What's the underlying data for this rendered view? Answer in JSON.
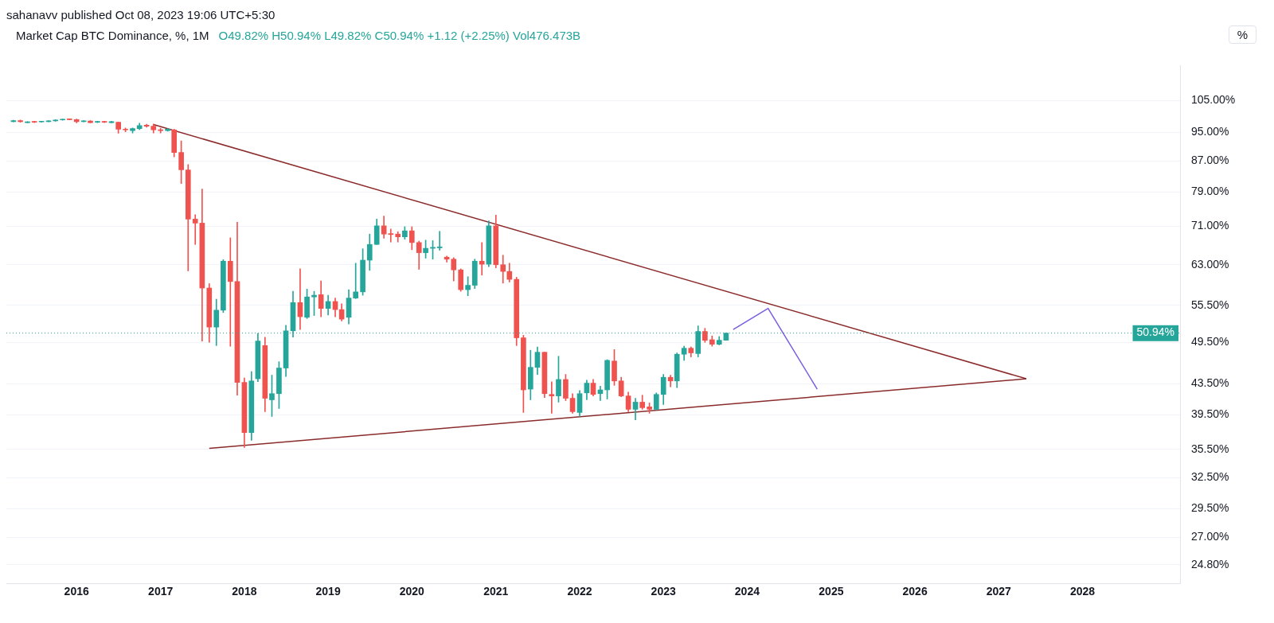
{
  "chart_data": {
    "type": "candlestick",
    "title": "Market Cap BTC Dominance, %, 1M",
    "subtitle": "O49.82% H50.94% L49.82% C50.94% +1.12 (+2.25%) Vol476.473B",
    "annotations": [
      "sahanavv published Oct 08, 2023 19:06 UTC+5:30"
    ],
    "ylabel": "%",
    "x": [
      "2015-04",
      "2015-05",
      "2015-06",
      "2015-07",
      "2015-08",
      "2015-09",
      "2015-10",
      "2015-11",
      "2015-12",
      "2016-01",
      "2016-02",
      "2016-03",
      "2016-04",
      "2016-05",
      "2016-06",
      "2016-07",
      "2016-08",
      "2016-09",
      "2016-10",
      "2016-11",
      "2016-12",
      "2017-01",
      "2017-02",
      "2017-03",
      "2017-04",
      "2017-05",
      "2017-06",
      "2017-07",
      "2017-08",
      "2017-09",
      "2017-10",
      "2017-11",
      "2017-12",
      "2018-01",
      "2018-02",
      "2018-03",
      "2018-04",
      "2018-05",
      "2018-06",
      "2018-07",
      "2018-08",
      "2018-09",
      "2018-10",
      "2018-11",
      "2018-12",
      "2019-01",
      "2019-02",
      "2019-03",
      "2019-04",
      "2019-05",
      "2019-06",
      "2019-07",
      "2019-08",
      "2019-09",
      "2019-10",
      "2019-11",
      "2019-12",
      "2020-01",
      "2020-02",
      "2020-03",
      "2020-04",
      "2020-05",
      "2020-06",
      "2020-07",
      "2020-08",
      "2020-09",
      "2020-10",
      "2020-11",
      "2020-12",
      "2021-01",
      "2021-02",
      "2021-03",
      "2021-04",
      "2021-05",
      "2021-06",
      "2021-07",
      "2021-08",
      "2021-09",
      "2021-10",
      "2021-11",
      "2021-12",
      "2022-01",
      "2022-02",
      "2022-03",
      "2022-04",
      "2022-05",
      "2022-06",
      "2022-07",
      "2022-08",
      "2022-09",
      "2022-10",
      "2022-11",
      "2022-12",
      "2023-01",
      "2023-02",
      "2023-03",
      "2023-04",
      "2023-05",
      "2023-06",
      "2023-07",
      "2023-08",
      "2023-09",
      "2023-10"
    ],
    "ohlc": [
      [
        98.3,
        98.7,
        98.2,
        98.6
      ],
      [
        98.6,
        98.8,
        98.1,
        98.3
      ],
      [
        98.0,
        98.3,
        97.9,
        98.1
      ],
      [
        98.3,
        98.4,
        98.0,
        98.1
      ],
      [
        98.2,
        98.4,
        98.1,
        98.3
      ],
      [
        98.3,
        98.6,
        98.2,
        98.5
      ],
      [
        98.5,
        98.9,
        98.4,
        98.8
      ],
      [
        98.8,
        99.1,
        98.7,
        99.0
      ],
      [
        99.0,
        99.1,
        98.8,
        98.9
      ],
      [
        98.9,
        99.1,
        97.9,
        98.3
      ],
      [
        98.3,
        98.6,
        98.2,
        98.5
      ],
      [
        98.5,
        98.6,
        97.9,
        98.0
      ],
      [
        98.1,
        98.4,
        98.0,
        98.3
      ],
      [
        98.3,
        98.4,
        98.0,
        98.1
      ],
      [
        98.0,
        98.4,
        97.9,
        98.3
      ],
      [
        98.1,
        98.2,
        94.8,
        96.0
      ],
      [
        96.0,
        96.4,
        95.2,
        95.8
      ],
      [
        95.6,
        96.4,
        94.9,
        96.2
      ],
      [
        96.2,
        97.8,
        95.9,
        97.1
      ],
      [
        97.2,
        97.5,
        96.6,
        96.9
      ],
      [
        96.9,
        97.6,
        94.9,
        95.8
      ],
      [
        95.8,
        96.3,
        94.9,
        95.6
      ],
      [
        95.6,
        96.2,
        95.4,
        96.0
      ],
      [
        95.8,
        96.0,
        88.1,
        89.3
      ],
      [
        89.3,
        92.6,
        81.1,
        84.6
      ],
      [
        84.6,
        86.0,
        61.8,
        72.6
      ],
      [
        72.6,
        73.6,
        67.1,
        71.7
      ],
      [
        71.7,
        79.7,
        49.7,
        58.6
      ],
      [
        58.6,
        59.4,
        49.5,
        51.9
      ],
      [
        51.9,
        56.6,
        49.0,
        54.7
      ],
      [
        54.7,
        64.0,
        54.3,
        63.7
      ],
      [
        63.7,
        68.5,
        48.9,
        59.8
      ],
      [
        59.8,
        71.9,
        42.0,
        43.7
      ],
      [
        43.7,
        44.3,
        35.7,
        37.4
      ],
      [
        37.4,
        45.2,
        36.5,
        43.9
      ],
      [
        44.2,
        50.9,
        43.8,
        49.7
      ],
      [
        49.0,
        50.3,
        39.9,
        41.6
      ],
      [
        41.4,
        44.7,
        39.3,
        42.2
      ],
      [
        42.2,
        46.6,
        40.3,
        45.7
      ],
      [
        45.7,
        52.2,
        44.5,
        51.3
      ],
      [
        51.3,
        58.0,
        50.3,
        56.0
      ],
      [
        56.0,
        62.2,
        51.5,
        53.6
      ],
      [
        53.5,
        58.4,
        53.3,
        57.0
      ],
      [
        57.0,
        58.0,
        53.8,
        57.3
      ],
      [
        57.4,
        59.9,
        53.6,
        55.0
      ],
      [
        55.0,
        57.3,
        53.9,
        56.2
      ],
      [
        56.2,
        56.8,
        53.6,
        54.8
      ],
      [
        54.8,
        55.8,
        52.9,
        53.2
      ],
      [
        53.5,
        58.3,
        52.4,
        56.8
      ],
      [
        56.8,
        63.3,
        56.7,
        57.9
      ],
      [
        57.9,
        66.2,
        57.3,
        63.9
      ],
      [
        63.9,
        69.3,
        61.9,
        67.1
      ],
      [
        67.1,
        72.6,
        67.1,
        71.1
      ],
      [
        71.1,
        73.3,
        68.4,
        69.3
      ],
      [
        69.4,
        70.4,
        67.6,
        69.2
      ],
      [
        69.3,
        69.8,
        67.6,
        68.7
      ],
      [
        68.7,
        70.9,
        68.2,
        70.0
      ],
      [
        70.0,
        70.9,
        66.0,
        67.5
      ],
      [
        67.5,
        67.8,
        62.1,
        65.4
      ],
      [
        65.4,
        68.0,
        64.3,
        66.3
      ],
      [
        66.3,
        67.9,
        64.1,
        66.5
      ],
      [
        66.4,
        69.9,
        65.9,
        66.6
      ],
      [
        64.5,
        64.7,
        63.5,
        64.1
      ],
      [
        64.1,
        64.4,
        59.9,
        62.0
      ],
      [
        62.0,
        62.2,
        58.0,
        58.3
      ],
      [
        58.3,
        60.7,
        57.2,
        59.1
      ],
      [
        59.1,
        64.1,
        58.5,
        63.7
      ],
      [
        63.7,
        67.5,
        61.0,
        63.1
      ],
      [
        63.1,
        72.2,
        62.6,
        71.1
      ],
      [
        71.1,
        73.5,
        62.4,
        63.0
      ],
      [
        63.0,
        64.9,
        59.5,
        61.7
      ],
      [
        61.7,
        63.3,
        59.7,
        60.2
      ],
      [
        60.2,
        60.6,
        49.0,
        50.2
      ],
      [
        50.2,
        50.6,
        39.8,
        42.7
      ],
      [
        42.8,
        48.3,
        41.4,
        45.8
      ],
      [
        45.8,
        48.8,
        44.8,
        48.0
      ],
      [
        48.0,
        48.0,
        41.7,
        42.2
      ],
      [
        42.1,
        43.8,
        39.7,
        41.9
      ],
      [
        41.9,
        47.4,
        41.1,
        44.1
      ],
      [
        44.1,
        44.8,
        41.3,
        41.6
      ],
      [
        41.6,
        42.2,
        39.7,
        39.9
      ],
      [
        39.8,
        42.6,
        39.3,
        42.2
      ],
      [
        42.3,
        44.0,
        41.4,
        43.6
      ],
      [
        43.6,
        44.1,
        41.9,
        42.1
      ],
      [
        42.2,
        43.2,
        41.3,
        42.7
      ],
      [
        42.7,
        46.9,
        41.5,
        46.8
      ],
      [
        46.7,
        48.4,
        43.3,
        43.9
      ],
      [
        43.9,
        44.4,
        41.8,
        41.9
      ],
      [
        41.9,
        42.4,
        39.9,
        40.2
      ],
      [
        40.2,
        41.6,
        38.9,
        41.1
      ],
      [
        41.1,
        42.0,
        40.2,
        40.4
      ],
      [
        40.5,
        41.0,
        39.7,
        40.2
      ],
      [
        40.2,
        42.3,
        40.1,
        42.1
      ],
      [
        42.1,
        44.8,
        40.8,
        44.4
      ],
      [
        44.4,
        44.7,
        43.1,
        43.9
      ],
      [
        43.9,
        47.9,
        43.0,
        47.7
      ],
      [
        47.7,
        48.9,
        46.8,
        48.6
      ],
      [
        48.6,
        48.8,
        47.3,
        47.9
      ],
      [
        47.8,
        52.1,
        47.3,
        51.2
      ],
      [
        51.2,
        51.7,
        49.5,
        49.8
      ],
      [
        49.9,
        50.5,
        48.9,
        49.2
      ],
      [
        49.2,
        50.4,
        49.1,
        49.82
      ],
      [
        49.82,
        50.94,
        49.82,
        50.94
      ]
    ],
    "series": [
      {
        "type": "line",
        "color": "#8b2a2a",
        "x": [
          "2016-12",
          "2027-05"
        ],
        "values": [
          97.4,
          44.2
        ]
      },
      {
        "type": "line",
        "color": "#8b2a2a",
        "x": [
          "2017-08",
          "2027-05"
        ],
        "values": [
          35.6,
          44.2
        ]
      },
      {
        "type": "line",
        "color": "#7b5ce0",
        "x": [
          "2023-11",
          "2024-04",
          "2024-11"
        ],
        "values": [
          51.5,
          55.0,
          42.8
        ]
      }
    ],
    "ref_lines": [
      {
        "axis": "y",
        "value": 50.94,
        "label": "50.94%",
        "color": "#26a69a",
        "line_style": "dotted"
      }
    ],
    "xlim": [
      "2015-03",
      "2029-03"
    ],
    "xticks": [
      "2016",
      "2017",
      "2018",
      "2019",
      "2020",
      "2021",
      "2022",
      "2023",
      "2024",
      "2025",
      "2026",
      "2027",
      "2028"
    ],
    "ylim": [
      23.4,
      117
    ],
    "yticks": [
      {
        "value": 24.8,
        "label": "24.80%"
      },
      {
        "value": 27,
        "label": "27.00%"
      },
      {
        "value": 29.5,
        "label": "29.50%"
      },
      {
        "value": 32.5,
        "label": "32.50%"
      },
      {
        "value": 35.5,
        "label": "35.50%"
      },
      {
        "value": 39.5,
        "label": "39.50%"
      },
      {
        "value": 43.5,
        "label": "43.50%"
      },
      {
        "value": 49.5,
        "label": "49.50%"
      },
      {
        "value": 55.5,
        "label": "55.50%"
      },
      {
        "value": 63,
        "label": "63.00%"
      },
      {
        "value": 71,
        "label": "71.00%"
      },
      {
        "value": 79,
        "label": "79.00%"
      },
      {
        "value": 87,
        "label": "87.00%"
      },
      {
        "value": 95,
        "label": "95.00%"
      },
      {
        "value": 105,
        "label": "105.00%"
      }
    ],
    "log": "y",
    "grid": "y"
  }
}
